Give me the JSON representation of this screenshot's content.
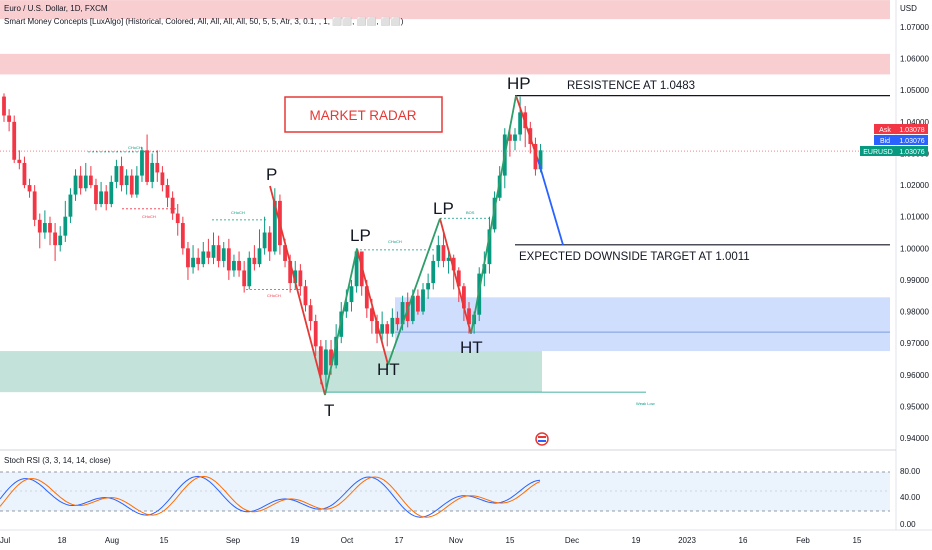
{
  "header": {
    "symbol_line": "Euro / U.S. Dollar, 1D, FXCM",
    "indicator_line": "Smart Money Concepts [LuxAlgo] (Historical, Colored, All, All, All, All, 50, 5, 5, Atr, 3, 0.1, , 1, ⬜⬜, ⬜⬜, ⬜⬜)"
  },
  "price_badges": [
    {
      "label": "Ask",
      "value": "1.03078",
      "color": "#f23645"
    },
    {
      "label": "Bid",
      "value": "1.03076",
      "color": "#2962ff"
    },
    {
      "label": "EURUSD",
      "value": "1.03076",
      "color": "#089981"
    }
  ],
  "rsi": {
    "title": "Stoch RSI (3, 3, 14, 14, close)",
    "y_ticks": [
      "80.00",
      "40.00",
      "0.00"
    ]
  },
  "annotations": {
    "market_radar": "MARKET RADAR",
    "resistance": "RESISTENCE AT 1.0483",
    "target": "EXPECTED DOWNSIDE TARGET AT 1.0011",
    "swing_labels": [
      "HP",
      "P",
      "LP",
      "LP",
      "HT",
      "HT",
      "T"
    ],
    "choch_small": "CHoCH",
    "bos_small": "BOS",
    "weak_low": "Weak Low"
  },
  "chart_data": {
    "type": "candlestick",
    "currency": "USD",
    "y_ticks": [
      "1.07000",
      "1.06000",
      "1.05000",
      "1.04000",
      "1.03000",
      "1.02000",
      "1.01000",
      "1.00000",
      "0.99000",
      "0.98000",
      "0.97000",
      "0.96000",
      "0.95000",
      "0.94000"
    ],
    "x_ticks": [
      "Jul",
      "18",
      "Aug",
      "15",
      "Sep",
      "19",
      "Oct",
      "17",
      "Nov",
      "15",
      "Dec",
      "19",
      "2023",
      "16",
      "Feb",
      "15"
    ],
    "ylim": [
      0.936,
      1.078
    ],
    "resistance_level": 1.0483,
    "target_level": 1.0011,
    "zones": [
      {
        "kind": "supply",
        "from": 1.0725,
        "to": 1.0785,
        "color": "#f7c5c9"
      },
      {
        "kind": "supply",
        "from": 1.055,
        "to": 1.0615,
        "color": "#f7c5c9"
      },
      {
        "kind": "demand",
        "from": 0.9545,
        "to": 0.9675,
        "color": "#b9ddd2"
      },
      {
        "kind": "demand",
        "from": 0.9675,
        "to": 0.9845,
        "color": "#c6d8fb"
      }
    ],
    "swing_points": [
      {
        "label": "HP",
        "price": 1.0483
      },
      {
        "label": "P",
        "price": 1.0197
      },
      {
        "label": "LP",
        "price": 0.9999
      },
      {
        "label": "LP",
        "price": 1.0094
      },
      {
        "label": "HT",
        "price": 0.9632
      },
      {
        "label": "HT",
        "price": 0.973
      },
      {
        "label": "T",
        "price": 0.9536
      }
    ],
    "candles": [
      [
        1.048,
        1.042,
        1.049,
        1.04
      ],
      [
        1.042,
        1.04,
        1.044,
        1.037
      ],
      [
        1.04,
        1.028,
        1.042,
        1.027
      ],
      [
        1.028,
        1.027,
        1.031,
        1.025
      ],
      [
        1.027,
        1.02,
        1.029,
        1.019
      ],
      [
        1.02,
        1.018,
        1.022,
        1.016
      ],
      [
        1.018,
        1.009,
        1.02,
        1.007
      ],
      [
        1.009,
        1.005,
        1.011,
        1.0
      ],
      [
        1.005,
        1.008,
        1.012,
        1.003
      ],
      [
        1.008,
        1.005,
        1.01,
        1.001
      ],
      [
        1.005,
        1.001,
        1.008,
        0.996
      ],
      [
        1.001,
        1.004,
        1.007,
        0.999
      ],
      [
        1.004,
        1.01,
        1.015,
        1.002
      ],
      [
        1.01,
        1.017,
        1.019,
        1.008
      ],
      [
        1.017,
        1.023,
        1.025,
        1.015
      ],
      [
        1.023,
        1.019,
        1.026,
        1.017
      ],
      [
        1.019,
        1.023,
        1.027,
        1.018
      ],
      [
        1.023,
        1.02,
        1.026,
        1.019
      ],
      [
        1.02,
        1.014,
        1.022,
        1.012
      ],
      [
        1.014,
        1.018,
        1.021,
        1.013
      ],
      [
        1.018,
        1.014,
        1.02,
        1.012
      ],
      [
        1.014,
        1.021,
        1.023,
        1.013
      ],
      [
        1.021,
        1.026,
        1.028,
        1.019
      ],
      [
        1.026,
        1.02,
        1.029,
        1.018
      ],
      [
        1.02,
        1.023,
        1.025,
        1.017
      ],
      [
        1.023,
        1.017,
        1.025,
        1.016
      ],
      [
        1.017,
        1.023,
        1.026,
        1.016
      ],
      [
        1.023,
        1.031,
        1.032,
        1.021
      ],
      [
        1.031,
        1.021,
        1.036,
        1.02
      ],
      [
        1.021,
        1.027,
        1.03,
        1.019
      ],
      [
        1.027,
        1.024,
        1.031,
        1.021
      ],
      [
        1.024,
        1.02,
        1.026,
        1.018
      ],
      [
        1.02,
        1.016,
        1.022,
        1.013
      ],
      [
        1.016,
        1.011,
        1.018,
        1.009
      ],
      [
        1.011,
        1.008,
        1.014,
        1.004
      ],
      [
        1.008,
        1.0,
        1.01,
        0.998
      ],
      [
        1.0,
        0.994,
        1.002,
        0.99
      ],
      [
        0.994,
        0.997,
        1.001,
        0.992
      ],
      [
        0.997,
        0.995,
        1.0,
        0.993
      ],
      [
        0.995,
        0.999,
        1.002,
        0.994
      ],
      [
        0.999,
        0.997,
        1.003,
        0.995
      ],
      [
        0.997,
        1.001,
        1.005,
        0.995
      ],
      [
        1.001,
        0.996,
        1.004,
        0.994
      ],
      [
        0.996,
        1.0,
        1.002,
        0.994
      ],
      [
        1.0,
        0.993,
        1.003,
        0.99
      ],
      [
        0.993,
        0.996,
        0.998,
        0.991
      ],
      [
        0.996,
        0.993,
        0.999,
        0.991
      ],
      [
        0.993,
        0.988,
        0.996,
        0.986
      ],
      [
        0.988,
        0.997,
        0.999,
        0.987
      ],
      [
        0.997,
        0.995,
        1.001,
        0.993
      ],
      [
        0.995,
        1.0,
        1.006,
        0.994
      ],
      [
        1.0,
        1.005,
        1.01,
        0.998
      ],
      [
        1.005,
        0.999,
        1.007,
        0.996
      ],
      [
        0.999,
        1.015,
        1.019,
        0.998
      ],
      [
        1.015,
        1.001,
        1.017,
        0.998
      ],
      [
        1.001,
        0.996,
        1.003,
        0.994
      ],
      [
        0.996,
        0.989,
        0.998,
        0.986
      ],
      [
        0.989,
        0.993,
        0.996,
        0.987
      ],
      [
        0.993,
        0.988,
        0.995,
        0.985
      ],
      [
        0.988,
        0.982,
        0.99,
        0.98
      ],
      [
        0.982,
        0.977,
        0.984,
        0.974
      ],
      [
        0.977,
        0.969,
        0.979,
        0.966
      ],
      [
        0.969,
        0.96,
        0.971,
        0.957
      ],
      [
        0.96,
        0.968,
        0.971,
        0.956
      ],
      [
        0.968,
        0.963,
        0.971,
        0.96
      ],
      [
        0.963,
        0.972,
        0.976,
        0.962
      ],
      [
        0.972,
        0.98,
        0.983,
        0.97
      ],
      [
        0.98,
        0.983,
        0.987,
        0.978
      ],
      [
        0.983,
        0.988,
        0.99,
        0.98
      ],
      [
        0.988,
        0.999,
        1.0,
        0.986
      ],
      [
        0.999,
        0.988,
        0.999,
        0.985
      ],
      [
        0.988,
        0.981,
        0.99,
        0.978
      ],
      [
        0.981,
        0.977,
        0.984,
        0.973
      ],
      [
        0.977,
        0.973,
        0.979,
        0.97
      ],
      [
        0.973,
        0.976,
        0.98,
        0.97
      ],
      [
        0.976,
        0.973,
        0.977,
        0.969
      ],
      [
        0.973,
        0.978,
        0.981,
        0.972
      ],
      [
        0.978,
        0.976,
        0.98,
        0.974
      ],
      [
        0.976,
        0.983,
        0.985,
        0.974
      ],
      [
        0.983,
        0.977,
        0.986,
        0.975
      ],
      [
        0.977,
        0.985,
        0.987,
        0.976
      ],
      [
        0.985,
        0.98,
        0.987,
        0.979
      ],
      [
        0.98,
        0.987,
        0.989,
        0.979
      ],
      [
        0.987,
        0.989,
        0.992,
        0.984
      ],
      [
        0.989,
        0.996,
        0.998,
        0.987
      ],
      [
        0.996,
        1.001,
        1.004,
        0.994
      ],
      [
        1.001,
        0.996,
        1.005,
        0.994
      ],
      [
        0.996,
        0.997,
        1.0,
        0.992
      ],
      [
        0.997,
        0.993,
        0.998,
        0.987
      ],
      [
        0.993,
        0.988,
        0.994,
        0.983
      ],
      [
        0.988,
        0.981,
        0.989,
        0.977
      ],
      [
        0.981,
        0.976,
        0.983,
        0.973
      ],
      [
        0.976,
        0.979,
        0.98,
        0.973
      ],
      [
        0.979,
        0.992,
        0.994,
        0.977
      ],
      [
        0.992,
        0.995,
        0.999,
        0.988
      ],
      [
        0.995,
        1.006,
        1.01,
        0.992
      ],
      [
        1.006,
        1.016,
        1.018,
        1.005
      ],
      [
        1.016,
        1.023,
        1.026,
        1.015
      ],
      [
        1.023,
        1.036,
        1.038,
        1.019
      ],
      [
        1.036,
        1.034,
        1.039,
        1.029
      ],
      [
        1.034,
        1.036,
        1.038,
        1.031
      ],
      [
        1.036,
        1.043,
        1.048,
        1.034
      ],
      [
        1.043,
        1.038,
        1.045,
        1.032
      ],
      [
        1.038,
        1.033,
        1.04,
        1.03
      ],
      [
        1.033,
        1.025,
        1.035,
        1.023
      ],
      [
        1.025,
        1.031,
        1.033,
        1.024
      ]
    ]
  }
}
